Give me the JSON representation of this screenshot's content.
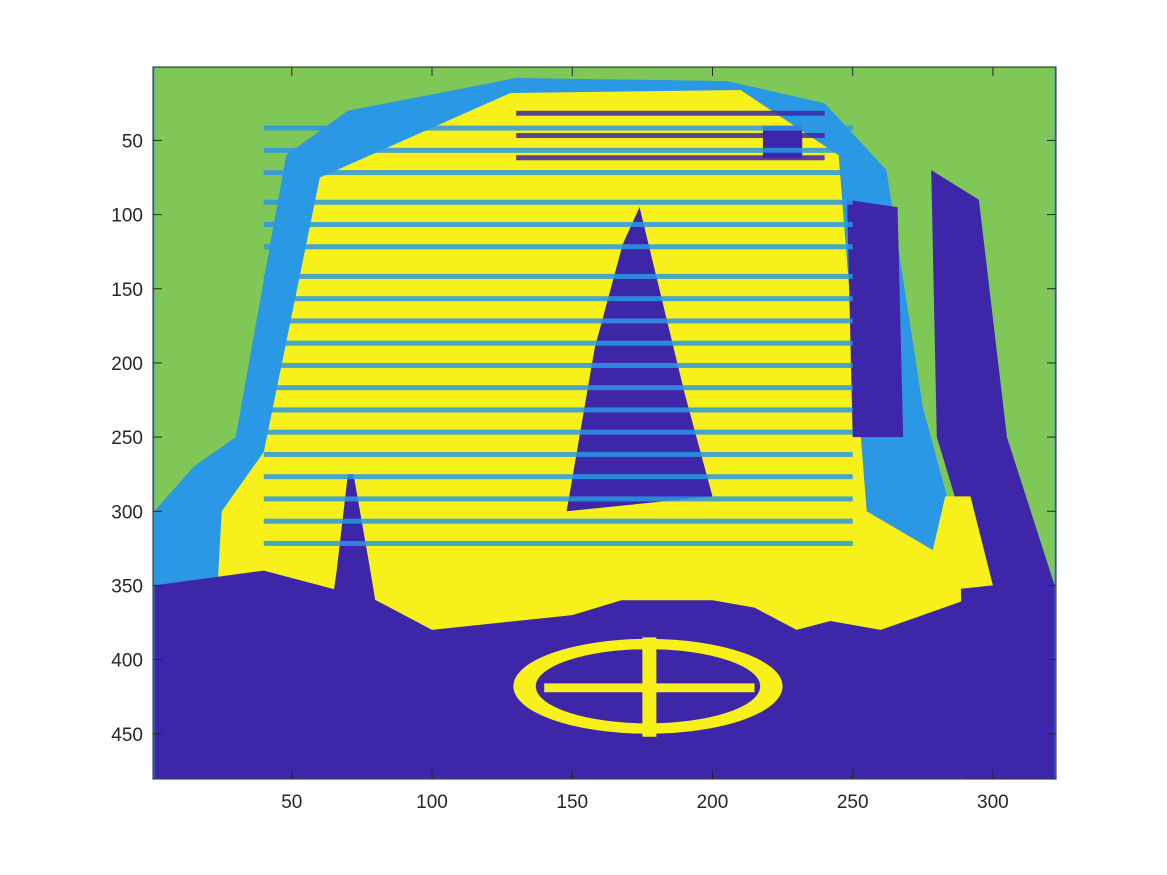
{
  "chart_data": {
    "type": "heatmap",
    "description_text": "",
    "title": "",
    "xlabel": "",
    "ylabel": "",
    "xlim": [
      0.5,
      322.5
    ],
    "ylim": [
      0.5,
      480.5
    ],
    "y_direction": "reverse",
    "x_ticks": [
      50,
      100,
      150,
      200,
      250,
      300
    ],
    "x_tick_labels": [
      "50",
      "100",
      "150",
      "200",
      "250",
      "300"
    ],
    "y_ticks": [
      50,
      100,
      150,
      200,
      250,
      300,
      350,
      400,
      450
    ],
    "y_tick_labels": [
      "50",
      "100",
      "150",
      "200",
      "250",
      "300",
      "350",
      "400",
      "450"
    ],
    "grid": false,
    "colormap": [
      "#3d26a8",
      "#2a98e4",
      "#7fc857",
      "#f8f01a"
    ],
    "classes": [
      {
        "index": 1,
        "color": "#3d26a8"
      },
      {
        "index": 2,
        "color": "#2a98e4"
      },
      {
        "index": 3,
        "color": "#7fc857"
      },
      {
        "index": 4,
        "color": "#f8f01a"
      }
    ],
    "regions": [
      {
        "class": "sky",
        "color": "#7fc857",
        "polygon": [
          [
            1,
            1
          ],
          [
            322,
            1
          ],
          [
            322,
            350
          ],
          [
            285,
            300
          ],
          [
            275,
            230
          ],
          [
            262,
            70
          ],
          [
            240,
            25
          ],
          [
            205,
            10
          ],
          [
            130,
            8
          ],
          [
            70,
            30
          ],
          [
            48,
            60
          ],
          [
            30,
            250
          ],
          [
            15,
            270
          ],
          [
            1,
            300
          ]
        ]
      },
      {
        "class": "facade",
        "color": "#2a98e4",
        "polygon": [
          [
            48,
            60
          ],
          [
            70,
            30
          ],
          [
            130,
            8
          ],
          [
            205,
            10
          ],
          [
            240,
            25
          ],
          [
            262,
            70
          ],
          [
            275,
            230
          ],
          [
            285,
            300
          ],
          [
            322,
            350
          ],
          [
            322,
            480
          ],
          [
            1,
            480
          ],
          [
            1,
            300
          ],
          [
            15,
            270
          ],
          [
            30,
            250
          ]
        ]
      },
      {
        "class": "face-highlight",
        "color": "#f8f01a",
        "polygon": [
          [
            60,
            75
          ],
          [
            128,
            18
          ],
          [
            210,
            16
          ],
          [
            245,
            60
          ],
          [
            255,
            300
          ],
          [
            300,
            350
          ],
          [
            300,
            470
          ],
          [
            20,
            470
          ],
          [
            25,
            300
          ],
          [
            40,
            260
          ]
        ]
      },
      {
        "class": "right-shadow",
        "color": "#3d26a8",
        "polygon": [
          [
            278,
            70
          ],
          [
            295,
            90
          ],
          [
            305,
            250
          ],
          [
            322,
            350
          ],
          [
            322,
            480
          ],
          [
            290,
            480
          ],
          [
            288,
            300
          ],
          [
            280,
            250
          ]
        ]
      },
      {
        "class": "dark-box",
        "color": "#3d26a8",
        "polygon": [
          [
            218,
            40
          ],
          [
            232,
            40
          ],
          [
            232,
            62
          ],
          [
            218,
            62
          ]
        ]
      },
      {
        "class": "right-window",
        "color": "#3d26a8",
        "polygon": [
          [
            248,
            90
          ],
          [
            266,
            95
          ],
          [
            268,
            250
          ],
          [
            250,
            250
          ]
        ]
      },
      {
        "class": "spire",
        "color": "#3d26a8",
        "polygon": [
          [
            174,
            95
          ],
          [
            190,
            220
          ],
          [
            200,
            290
          ],
          [
            148,
            300
          ],
          [
            158,
            190
          ],
          [
            168,
            120
          ]
        ]
      },
      {
        "class": "left-spire",
        "color": "#3d26a8",
        "polygon": [
          [
            70,
            275
          ],
          [
            72,
            275
          ],
          [
            78,
            340
          ],
          [
            85,
            420
          ],
          [
            60,
            420
          ],
          [
            66,
            340
          ]
        ]
      },
      {
        "class": "church-base",
        "color": "#3d26a8",
        "polygon": [
          [
            1,
            350
          ],
          [
            40,
            340
          ],
          [
            80,
            360
          ],
          [
            100,
            380
          ],
          [
            150,
            360
          ],
          [
            200,
            360
          ],
          [
            260,
            380
          ],
          [
            290,
            360
          ],
          [
            322,
            350
          ],
          [
            322,
            480
          ],
          [
            1,
            480
          ]
        ]
      },
      {
        "class": "roof-left",
        "color": "#f8f01a",
        "polygon": [
          [
            100,
            380
          ],
          [
            175,
            300
          ],
          [
            220,
            330
          ],
          [
            150,
            370
          ]
        ]
      },
      {
        "class": "roof-right",
        "color": "#f8f01a",
        "polygon": [
          [
            175,
            300
          ],
          [
            250,
            370
          ],
          [
            230,
            380
          ],
          [
            200,
            350
          ]
        ]
      },
      {
        "class": "right-turret",
        "color": "#f8f01a",
        "polygon": [
          [
            283,
            290
          ],
          [
            292,
            290
          ],
          [
            300,
            350
          ],
          [
            275,
            355
          ]
        ]
      },
      {
        "class": "rose-window-ring",
        "color": "#f8f01a",
        "ellipse": [
          177,
          418,
          48,
          32
        ]
      },
      {
        "class": "rose-window",
        "color": "#3d26a8",
        "ellipse": [
          177,
          418,
          40,
          25
        ]
      },
      {
        "class": "rose-vertical",
        "color": "#f8f01a",
        "polygon": [
          [
            175,
            385
          ],
          [
            180,
            385
          ],
          [
            180,
            452
          ],
          [
            175,
            452
          ]
        ]
      },
      {
        "class": "rose-horizontal",
        "color": "#f8f01a",
        "polygon": [
          [
            140,
            416
          ],
          [
            215,
            416
          ],
          [
            215,
            422
          ],
          [
            140,
            422
          ]
        ]
      }
    ],
    "stripe_bands": [
      {
        "color": "#2a98e4",
        "x_range": [
          40,
          250
        ],
        "y_values": [
          40,
          55,
          70,
          90,
          105,
          120,
          140,
          155,
          170,
          185,
          200,
          215,
          230,
          245,
          260,
          275,
          290,
          305,
          320
        ]
      },
      {
        "color": "#3d26a8",
        "x_range": [
          130,
          240
        ],
        "y_values": [
          30,
          45,
          60
        ]
      }
    ]
  }
}
